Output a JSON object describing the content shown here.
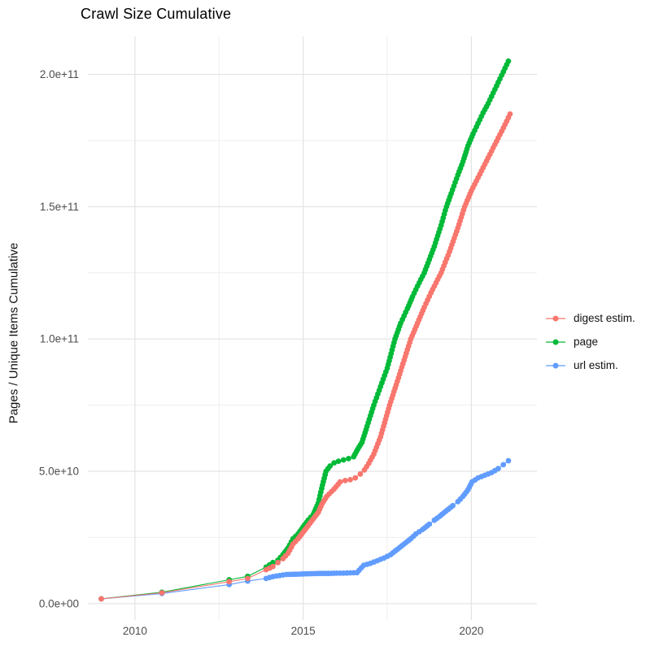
{
  "chart_data": {
    "type": "scatter",
    "title": "Crawl Size Cumulative",
    "xlabel": "",
    "ylabel": "Pages / Unique Items Cumulative",
    "value_unit_note": "values stored in billions (1e9)",
    "x_domain": [
      2008.6,
      2021.95
    ],
    "y_domain_billions": [
      -6.2,
      214.3
    ],
    "x_major_ticks": [
      {
        "value": 2010,
        "label": "2010"
      },
      {
        "value": 2015,
        "label": "2015"
      },
      {
        "value": 2020,
        "label": "2020"
      }
    ],
    "x_minor_ticks": [
      2012.5,
      2017.5
    ],
    "y_major_ticks": [
      {
        "value": 0,
        "label": "0.0e+00"
      },
      {
        "value": 50,
        "label": "5.0e+10"
      },
      {
        "value": 100,
        "label": "1.0e+11"
      },
      {
        "value": 150,
        "label": "1.5e+11"
      },
      {
        "value": 200,
        "label": "2.0e+11"
      }
    ],
    "y_minor_ticks": [
      25,
      75,
      125,
      175
    ],
    "grid": {
      "major_color": "#E3E3E3",
      "minor_color": "#EFEFEF",
      "background": "#FFFFFF"
    },
    "legend_position": "right",
    "draw_order": [
      "page",
      "url estim.",
      "digest estim."
    ],
    "dense_from_year": 2013.5,
    "series": [
      {
        "name": "digest estim.",
        "color": "#F8766D",
        "points": [
          [
            2009.0,
            1.8
          ],
          [
            2010.8,
            4.1
          ],
          [
            2012.8,
            8.3
          ],
          [
            2013.35,
            9.5
          ],
          [
            2013.9,
            12.8
          ],
          [
            2014.1,
            14.0
          ],
          [
            2014.25,
            15.5
          ],
          [
            2014.4,
            17.0
          ],
          [
            2014.55,
            19.0
          ],
          [
            2014.7,
            22.5
          ],
          [
            2014.85,
            24.5
          ],
          [
            2015.0,
            27.0
          ],
          [
            2015.15,
            29.5
          ],
          [
            2015.3,
            32.0
          ],
          [
            2015.45,
            34.5
          ],
          [
            2015.56,
            37.7
          ],
          [
            2015.7,
            40.5
          ],
          [
            2015.92,
            43.3
          ],
          [
            2016.1,
            46.0
          ],
          [
            2016.25,
            46.5
          ],
          [
            2016.4,
            46.8
          ],
          [
            2016.55,
            47.5
          ],
          [
            2016.7,
            49.0
          ],
          [
            2016.82,
            50.5
          ],
          [
            2016.95,
            53.0
          ],
          [
            2017.1,
            56.5
          ],
          [
            2017.3,
            63.0
          ],
          [
            2017.57,
            75.0
          ],
          [
            2017.8,
            84.0
          ],
          [
            2018.0,
            92.0
          ],
          [
            2018.2,
            100.0
          ],
          [
            2018.4,
            106.0
          ],
          [
            2018.6,
            112.0
          ],
          [
            2018.8,
            117.5
          ],
          [
            2019.1,
            125.0
          ],
          [
            2019.35,
            133.0
          ],
          [
            2019.6,
            142.0
          ],
          [
            2019.8,
            150.0
          ],
          [
            2020.0,
            156.0
          ],
          [
            2020.2,
            161.0
          ],
          [
            2020.4,
            166.0
          ],
          [
            2020.6,
            171.0
          ],
          [
            2020.8,
            176.0
          ],
          [
            2021.0,
            181.0
          ],
          [
            2021.15,
            185.0
          ]
        ]
      },
      {
        "name": "page",
        "color": "#00BA38",
        "points": [
          [
            2009.0,
            1.8
          ],
          [
            2010.8,
            4.3
          ],
          [
            2012.8,
            9.0
          ],
          [
            2013.35,
            10.3
          ],
          [
            2013.9,
            13.8
          ],
          [
            2014.1,
            15.5
          ],
          [
            2014.25,
            16.4
          ],
          [
            2014.4,
            18.5
          ],
          [
            2014.55,
            21.0
          ],
          [
            2014.7,
            24.5
          ],
          [
            2014.85,
            26.3
          ],
          [
            2015.0,
            29.0
          ],
          [
            2015.15,
            31.5
          ],
          [
            2015.3,
            33.7
          ],
          [
            2015.45,
            38.0
          ],
          [
            2015.55,
            43.5
          ],
          [
            2015.68,
            50.0
          ],
          [
            2015.8,
            52.0
          ],
          [
            2015.92,
            53.2
          ],
          [
            2016.05,
            53.8
          ],
          [
            2016.2,
            54.3
          ],
          [
            2016.35,
            54.8
          ],
          [
            2016.5,
            55.5
          ],
          [
            2016.62,
            58.3
          ],
          [
            2016.75,
            61.0
          ],
          [
            2016.9,
            67.0
          ],
          [
            2017.1,
            75.0
          ],
          [
            2017.3,
            82.0
          ],
          [
            2017.5,
            89.0
          ],
          [
            2017.73,
            100.0
          ],
          [
            2017.9,
            106.0
          ],
          [
            2018.1,
            111.5
          ],
          [
            2018.25,
            116.0
          ],
          [
            2018.4,
            120.0
          ],
          [
            2018.6,
            125.0
          ],
          [
            2018.75,
            130.0
          ],
          [
            2018.9,
            135.0
          ],
          [
            2019.1,
            143.0
          ],
          [
            2019.26,
            150.0
          ],
          [
            2019.4,
            155.0
          ],
          [
            2019.6,
            162.0
          ],
          [
            2019.75,
            167.0
          ],
          [
            2019.9,
            173.0
          ],
          [
            2020.05,
            177.5
          ],
          [
            2020.2,
            181.5
          ],
          [
            2020.35,
            185.5
          ],
          [
            2020.5,
            189.0
          ],
          [
            2020.65,
            193.0
          ],
          [
            2020.8,
            197.0
          ],
          [
            2020.95,
            201.0
          ],
          [
            2021.1,
            205.0
          ]
        ]
      },
      {
        "name": "url estim.",
        "color": "#619CFF",
        "points": [
          [
            2009.0,
            1.8
          ],
          [
            2010.8,
            3.8
          ],
          [
            2012.8,
            7.2
          ],
          [
            2013.35,
            8.5
          ],
          [
            2013.9,
            9.5
          ],
          [
            2014.1,
            10.2
          ],
          [
            2014.3,
            10.6
          ],
          [
            2014.5,
            11.0
          ],
          [
            2014.75,
            11.1
          ],
          [
            2015.0,
            11.2
          ],
          [
            2015.25,
            11.3
          ],
          [
            2015.5,
            11.4
          ],
          [
            2015.75,
            11.4
          ],
          [
            2016.0,
            11.5
          ],
          [
            2016.2,
            11.5
          ],
          [
            2016.4,
            11.6
          ],
          [
            2016.6,
            11.7
          ],
          [
            2016.8,
            14.5
          ],
          [
            2017.0,
            15.2
          ],
          [
            2017.2,
            16.2
          ],
          [
            2017.4,
            17.2
          ],
          [
            2017.6,
            18.5
          ],
          [
            2017.8,
            20.5
          ],
          [
            2018.0,
            22.5
          ],
          [
            2018.2,
            24.5
          ],
          [
            2018.35,
            26.3
          ],
          [
            2018.55,
            28.0
          ],
          [
            2018.75,
            30.0
          ],
          [
            2018.9,
            31.5
          ],
          [
            2019.06,
            33.0
          ],
          [
            2019.25,
            35.0
          ],
          [
            2019.45,
            37.0
          ],
          [
            2019.6,
            38.5
          ],
          [
            2019.75,
            40.5
          ],
          [
            2019.9,
            43.0
          ],
          [
            2020.02,
            46.0
          ],
          [
            2020.2,
            47.5
          ],
          [
            2020.4,
            48.5
          ],
          [
            2020.6,
            49.5
          ],
          [
            2020.8,
            51.0
          ],
          [
            2020.95,
            52.5
          ],
          [
            2021.1,
            54.0
          ]
        ]
      }
    ]
  }
}
